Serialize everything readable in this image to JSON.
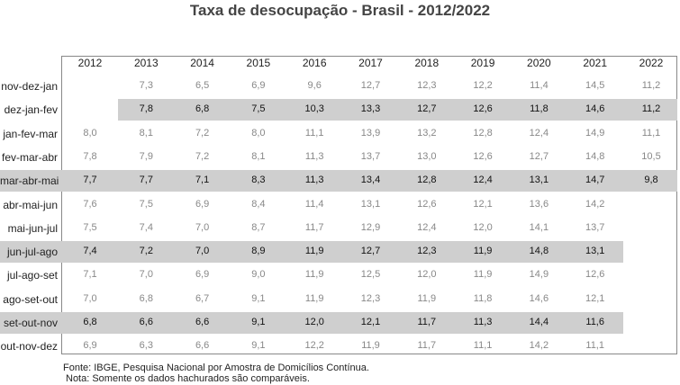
{
  "title": "Taxa de desocupação - Brasil - 2012/2022",
  "table": {
    "columns": [
      "2012",
      "2013",
      "2014",
      "2015",
      "2016",
      "2017",
      "2018",
      "2019",
      "2020",
      "2021",
      "2022"
    ],
    "rows": [
      {
        "label": "nov-dez-jan",
        "highlighted": false,
        "values": [
          null,
          "7,3",
          "6,5",
          "6,9",
          "9,6",
          "12,7",
          "12,3",
          "12,2",
          "11,4",
          "14,5",
          "11,2"
        ]
      },
      {
        "label": "dez-jan-fev",
        "highlighted": true,
        "values": [
          null,
          "7,8",
          "6,8",
          "7,5",
          "10,3",
          "13,3",
          "12,7",
          "12,6",
          "11,8",
          "14,6",
          "11,2"
        ]
      },
      {
        "label": "jan-fev-mar",
        "highlighted": false,
        "values": [
          "8,0",
          "8,1",
          "7,2",
          "8,0",
          "11,1",
          "13,9",
          "13,2",
          "12,8",
          "12,4",
          "14,9",
          "11,1"
        ]
      },
      {
        "label": "fev-mar-abr",
        "highlighted": false,
        "values": [
          "7,8",
          "7,9",
          "7,2",
          "8,1",
          "11,3",
          "13,7",
          "13,0",
          "12,6",
          "12,7",
          "14,8",
          "10,5"
        ]
      },
      {
        "label": "mar-abr-mai",
        "highlighted": true,
        "values": [
          "7,7",
          "7,7",
          "7,1",
          "8,3",
          "11,3",
          "13,4",
          "12,8",
          "12,4",
          "13,1",
          "14,7",
          "9,8"
        ]
      },
      {
        "label": "abr-mai-jun",
        "highlighted": false,
        "values": [
          "7,6",
          "7,5",
          "6,9",
          "8,4",
          "11,4",
          "13,1",
          "12,6",
          "12,1",
          "13,6",
          "14,2",
          null
        ]
      },
      {
        "label": "mai-jun-jul",
        "highlighted": false,
        "values": [
          "7,5",
          "7,4",
          "7,0",
          "8,7",
          "11,7",
          "12,9",
          "12,4",
          "12,0",
          "14,1",
          "13,7",
          null
        ]
      },
      {
        "label": "jun-jul-ago",
        "highlighted": true,
        "values": [
          "7,4",
          "7,2",
          "7,0",
          "8,9",
          "11,9",
          "12,7",
          "12,3",
          "11,9",
          "14,8",
          "13,1",
          null
        ]
      },
      {
        "label": "jul-ago-set",
        "highlighted": false,
        "values": [
          "7,1",
          "7,0",
          "6,9",
          "9,0",
          "11,9",
          "12,5",
          "12,0",
          "11,9",
          "14,9",
          "12,6",
          null
        ]
      },
      {
        "label": "ago-set-out",
        "highlighted": false,
        "values": [
          "7,0",
          "6,8",
          "6,7",
          "9,1",
          "11,9",
          "12,3",
          "11,9",
          "11,8",
          "14,6",
          "12,1",
          null
        ]
      },
      {
        "label": "set-out-nov",
        "highlighted": true,
        "values": [
          "6,8",
          "6,6",
          "6,6",
          "9,1",
          "12,0",
          "12,1",
          "11,7",
          "11,3",
          "14,4",
          "11,6",
          null
        ]
      },
      {
        "label": "out-nov-dez",
        "highlighted": false,
        "values": [
          "6,9",
          "6,3",
          "6,6",
          "9,1",
          "12,2",
          "11,9",
          "11,7",
          "11,1",
          "14,2",
          "11,1",
          null
        ]
      }
    ]
  },
  "notes": [
    "Fonte: IBGE, Pesquisa Nacional por Amostra de Domicílios Contínua.",
    "Nota: Somente os dados hachurados são comparáveis."
  ]
}
